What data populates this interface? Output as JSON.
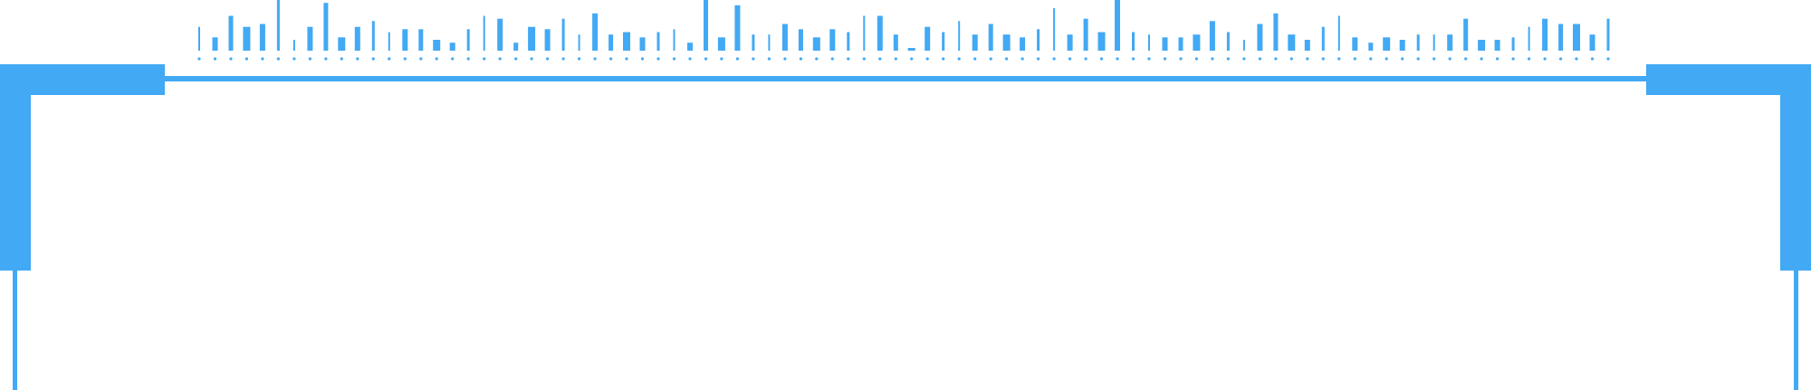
{
  "colors": {
    "accent": "#42A9F4",
    "background": "#FFFFFF"
  },
  "equalizer": {
    "levels": [
      0.44,
      0.22,
      0.67,
      0.44,
      0.5,
      1.0,
      0.17,
      0.44,
      0.94,
      0.22,
      0.44,
      0.56,
      0.33,
      0.39,
      0.39,
      0.17,
      0.11,
      0.39,
      0.67,
      0.61,
      0.11,
      0.44,
      0.39,
      0.61,
      0.28,
      0.72,
      0.28,
      0.33,
      0.22,
      0.33,
      0.39,
      0.11,
      1.0,
      0.22,
      0.89,
      0.28,
      0.28,
      0.5,
      0.39,
      0.22,
      0.39,
      0.33,
      0.67,
      0.67,
      0.28,
      0.0,
      0.44,
      0.33,
      0.56,
      0.28,
      0.5,
      0.28,
      0.22,
      0.39,
      0.83,
      0.28,
      0.61,
      0.33,
      1.0,
      0.33,
      0.28,
      0.22,
      0.22,
      0.28,
      0.56,
      0.33,
      0.17,
      0.5,
      0.72,
      0.28,
      0.17,
      0.44,
      0.67,
      0.22,
      0.11,
      0.22,
      0.17,
      0.28,
      0.28,
      0.28,
      0.61,
      0.17,
      0.17,
      0.22,
      0.44,
      0.61,
      0.5,
      0.5,
      0.28,
      0.61
    ]
  }
}
